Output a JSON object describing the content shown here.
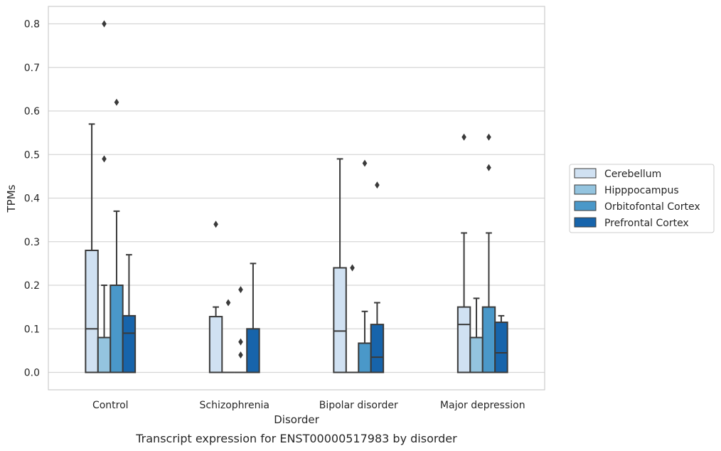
{
  "caption": "Transcript expression for ENST00000517983 by disorder",
  "chart_data": {
    "type": "box",
    "title": "",
    "xlabel": "Disorder",
    "ylabel": "TPMs",
    "categories": [
      "Control",
      "Schizophrenia",
      "Bipolar disorder",
      "Major depression"
    ],
    "yticks": [
      "0.0",
      "0.1",
      "0.2",
      "0.3",
      "0.4",
      "0.5",
      "0.6",
      "0.7",
      "0.8"
    ],
    "ylim": [
      -0.04,
      0.84
    ],
    "grid": "horizontal",
    "legend_position": "right",
    "series": [
      {
        "name": "Cerebellum",
        "color": "#d0e1f2",
        "boxes": [
          {
            "q1": 0.0,
            "median": 0.1,
            "q3": 0.28,
            "whislo": 0.0,
            "whishi": 0.57,
            "fliers": []
          },
          {
            "q1": 0.0,
            "median": 0.0,
            "q3": 0.128,
            "whislo": 0.0,
            "whishi": 0.15,
            "fliers": [
              0.34
            ]
          },
          {
            "q1": 0.0,
            "median": 0.095,
            "q3": 0.24,
            "whislo": 0.0,
            "whishi": 0.49,
            "fliers": []
          },
          {
            "q1": 0.0,
            "median": 0.11,
            "q3": 0.15,
            "whislo": 0.0,
            "whishi": 0.32,
            "fliers": [
              0.54
            ]
          }
        ]
      },
      {
        "name": "Hipppocampus",
        "color": "#94c4df",
        "boxes": [
          {
            "q1": 0.0,
            "median": 0.0,
            "q3": 0.08,
            "whislo": 0.0,
            "whishi": 0.2,
            "fliers": [
              0.49,
              0.8
            ]
          },
          {
            "q1": 0.0,
            "median": 0.0,
            "q3": 0.0,
            "whislo": 0.0,
            "whishi": 0.0,
            "fliers": [
              0.16
            ]
          },
          {
            "q1": 0.0,
            "median": 0.0,
            "q3": 0.0,
            "whislo": 0.0,
            "whishi": 0.0,
            "fliers": [
              0.24
            ]
          },
          {
            "q1": 0.0,
            "median": 0.0,
            "q3": 0.08,
            "whislo": 0.0,
            "whishi": 0.17,
            "fliers": []
          }
        ]
      },
      {
        "name": "Orbitofontal Cortex",
        "color": "#4a98c9",
        "boxes": [
          {
            "q1": 0.0,
            "median": 0.0,
            "q3": 0.2,
            "whislo": 0.0,
            "whishi": 0.37,
            "fliers": [
              0.62
            ]
          },
          {
            "q1": 0.0,
            "median": 0.0,
            "q3": 0.0,
            "whislo": 0.0,
            "whishi": 0.0,
            "fliers": [
              0.04,
              0.07,
              0.19
            ]
          },
          {
            "q1": 0.0,
            "median": 0.0,
            "q3": 0.067,
            "whislo": 0.0,
            "whishi": 0.14,
            "fliers": [
              0.48
            ]
          },
          {
            "q1": 0.0,
            "median": 0.0,
            "q3": 0.15,
            "whislo": 0.0,
            "whishi": 0.32,
            "fliers": [
              0.47,
              0.54
            ]
          }
        ]
      },
      {
        "name": "Prefrontal Cortex",
        "color": "#1764ab",
        "boxes": [
          {
            "q1": 0.0,
            "median": 0.09,
            "q3": 0.13,
            "whislo": 0.0,
            "whishi": 0.27,
            "fliers": []
          },
          {
            "q1": 0.0,
            "median": 0.0,
            "q3": 0.1,
            "whislo": 0.0,
            "whishi": 0.25,
            "fliers": []
          },
          {
            "q1": 0.0,
            "median": 0.035,
            "q3": 0.11,
            "whislo": 0.0,
            "whishi": 0.16,
            "fliers": [
              0.43
            ]
          },
          {
            "q1": 0.0,
            "median": 0.045,
            "q3": 0.115,
            "whislo": 0.0,
            "whishi": 0.13,
            "fliers": []
          }
        ]
      }
    ]
  }
}
